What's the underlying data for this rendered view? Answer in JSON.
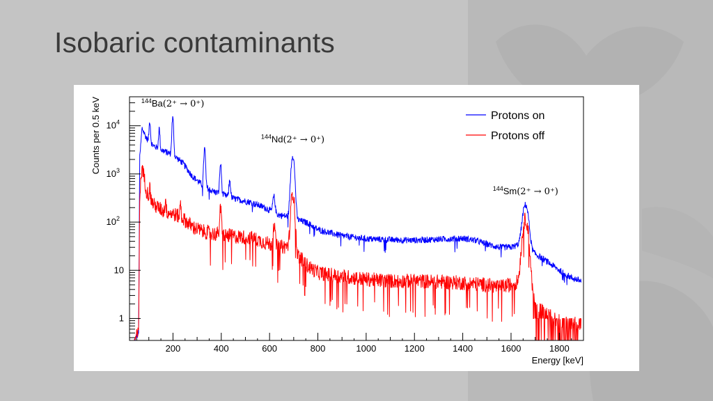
{
  "slide": {
    "title": "Isobaric contaminants",
    "background_color": "#c4c4c4",
    "title_color": "#3a3a3a"
  },
  "chart_data": {
    "type": "line",
    "title": "",
    "xlabel": "Energy [keV]",
    "ylabel": "Counts per 0.5 keV",
    "xlim": [
      20,
      1900
    ],
    "ylim": [
      0.35,
      40000
    ],
    "y_scale": "log",
    "x_ticks": [
      200,
      400,
      600,
      800,
      1000,
      1200,
      1400,
      1600,
      1800
    ],
    "x_tick_labels": [
      "200",
      "400",
      "600",
      "800",
      "1000",
      "1200",
      "1400",
      "1600",
      "1800"
    ],
    "y_ticks": [
      1,
      10,
      100,
      1000,
      10000
    ],
    "y_tick_labels": [
      {
        "base": "1",
        "exp": ""
      },
      {
        "base": "10",
        "exp": ""
      },
      {
        "base": "10",
        "exp": "2"
      },
      {
        "base": "10",
        "exp": "3"
      },
      {
        "base": "10",
        "exp": "4"
      }
    ],
    "grid": false,
    "legend_position": "top-right",
    "series": [
      {
        "name": "Protons on",
        "color": "#0000ff",
        "baseline": [
          [
            40,
            0.35
          ],
          [
            58,
            0.5
          ],
          [
            62,
            2000
          ],
          [
            72,
            9000
          ],
          [
            90,
            5500
          ],
          [
            120,
            3800
          ],
          [
            160,
            3000
          ],
          [
            200,
            2500
          ],
          [
            240,
            1700
          ],
          [
            280,
            900
          ],
          [
            320,
            600
          ],
          [
            360,
            450
          ],
          [
            400,
            380
          ],
          [
            460,
            300
          ],
          [
            520,
            260
          ],
          [
            580,
            200
          ],
          [
            640,
            140
          ],
          [
            680,
            130
          ],
          [
            720,
            110
          ],
          [
            760,
            95
          ],
          [
            800,
            70
          ],
          [
            850,
            60
          ],
          [
            900,
            52
          ],
          [
            1000,
            45
          ],
          [
            1100,
            43
          ],
          [
            1200,
            42
          ],
          [
            1300,
            44
          ],
          [
            1400,
            46
          ],
          [
            1450,
            42
          ],
          [
            1500,
            35
          ],
          [
            1550,
            30
          ],
          [
            1600,
            30
          ],
          [
            1640,
            35
          ],
          [
            1700,
            22
          ],
          [
            1750,
            15
          ],
          [
            1800,
            10
          ],
          [
            1850,
            7
          ],
          [
            1890,
            6
          ]
        ],
        "peaks": [
          {
            "energy": 104,
            "height": 8000,
            "width": 2.5
          },
          {
            "energy": 143,
            "height": 5500,
            "width": 2.5
          },
          {
            "energy": 199,
            "height": 12000,
            "width": 3
          },
          {
            "energy": 331,
            "height": 2800,
            "width": 3
          },
          {
            "energy": 397,
            "height": 1200,
            "width": 3
          },
          {
            "energy": 435,
            "height": 400,
            "width": 3
          },
          {
            "energy": 618,
            "height": 180,
            "width": 4
          },
          {
            "energy": 696,
            "height": 2300,
            "width": 6
          },
          {
            "energy": 1660,
            "height": 200,
            "width": 10
          }
        ],
        "noise": 0.07
      },
      {
        "name": "Protons off",
        "color": "#ff0000",
        "baseline": [
          [
            40,
            0.35
          ],
          [
            58,
            0.5
          ],
          [
            62,
            300
          ],
          [
            72,
            1500
          ],
          [
            90,
            450
          ],
          [
            120,
            230
          ],
          [
            160,
            170
          ],
          [
            200,
            150
          ],
          [
            240,
            120
          ],
          [
            280,
            80
          ],
          [
            320,
            65
          ],
          [
            360,
            58
          ],
          [
            400,
            55
          ],
          [
            460,
            50
          ],
          [
            520,
            48
          ],
          [
            580,
            38
          ],
          [
            640,
            30
          ],
          [
            680,
            32
          ],
          [
            720,
            20
          ],
          [
            760,
            12
          ],
          [
            800,
            9
          ],
          [
            850,
            8
          ],
          [
            900,
            7.5
          ],
          [
            1000,
            6.5
          ],
          [
            1100,
            6
          ],
          [
            1200,
            6
          ],
          [
            1300,
            5.8
          ],
          [
            1400,
            5.5
          ],
          [
            1500,
            5
          ],
          [
            1550,
            4.5
          ],
          [
            1600,
            5
          ],
          [
            1640,
            6
          ],
          [
            1680,
            3
          ],
          [
            1700,
            2
          ],
          [
            1750,
            1.2
          ],
          [
            1800,
            0.9
          ],
          [
            1850,
            0.8
          ],
          [
            1890,
            0.8
          ]
        ],
        "peaks": [
          {
            "energy": 104,
            "height": 180,
            "width": 2
          },
          {
            "energy": 169,
            "height": 140,
            "width": 2
          },
          {
            "energy": 231,
            "height": 130,
            "width": 2
          },
          {
            "energy": 397,
            "height": 130,
            "width": 3
          },
          {
            "energy": 618,
            "height": 55,
            "width": 4
          },
          {
            "energy": 696,
            "height": 380,
            "width": 6
          },
          {
            "energy": 1660,
            "height": 110,
            "width": 10
          }
        ],
        "noise": 0.16
      }
    ],
    "annotations": [
      {
        "isotope": "Ba",
        "mass": "144",
        "transition": "(2⁺ → 0⁺)",
        "energy": 199,
        "counts": 25000
      },
      {
        "isotope": "Nd",
        "mass": "144",
        "transition": "(2⁺ → 0⁺)",
        "energy": 696,
        "counts": 4500
      },
      {
        "isotope": "Sm",
        "mass": "144",
        "transition": "(2⁺ → 0⁺)",
        "energy": 1660,
        "counts": 380
      }
    ]
  }
}
